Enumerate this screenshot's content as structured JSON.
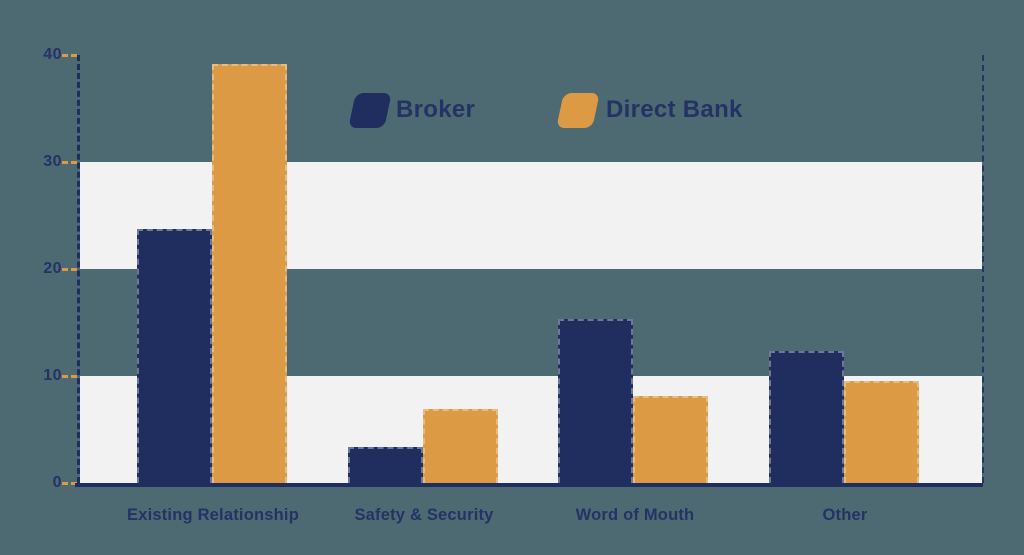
{
  "chart_data": {
    "type": "bar",
    "title": "",
    "xlabel": "",
    "ylabel": "",
    "categories": [
      "Existing Relationship",
      "Safety & Security",
      "Word of Mouth",
      "Other"
    ],
    "series": [
      {
        "name": "Broker",
        "color": "#1f2e5e",
        "values": [
          23.7,
          3.4,
          15.3,
          12.3
        ]
      },
      {
        "name": "Direct Bank",
        "color": "#dd9a44",
        "values": [
          39.2,
          6.9,
          8.1,
          9.5
        ]
      }
    ],
    "ylim": [
      0,
      40
    ],
    "y_ticks": [
      "0",
      "10",
      "20",
      "30",
      "40"
    ],
    "legend_position": "top-center",
    "grid": "alternating horizontal light bands covering 0-10 and 20-30"
  },
  "colors": {
    "background": "#4d6a72",
    "band": "#f2f2f3",
    "axis": "#1f2e5e",
    "tick": "#dd9a44",
    "text": "#243363"
  }
}
